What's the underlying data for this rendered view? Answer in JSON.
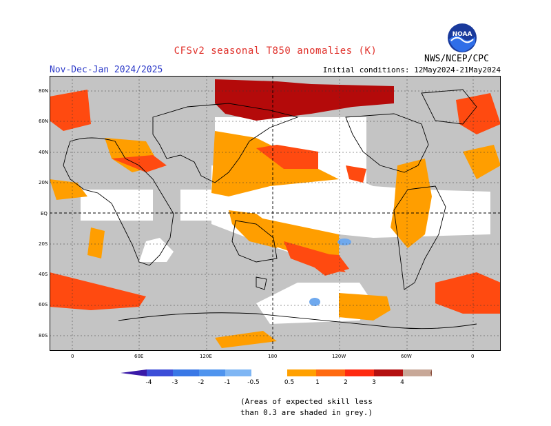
{
  "header": {
    "title": "CFSv2 seasonal T850 anomalies (K)",
    "period": "Nov-Dec-Jan 2024/2025",
    "initial_conditions": "Initial conditions: 12May2024-21May2024",
    "agency": "NWS/NCEP/CPC",
    "logo_text": "NOAA"
  },
  "map": {
    "lat_labels": [
      "80N",
      "60N",
      "40N",
      "20N",
      "EQ",
      "20S",
      "40S",
      "60S",
      "80S"
    ],
    "lon_labels": [
      "0",
      "60E",
      "120E",
      "180",
      "120W",
      "60W",
      "0"
    ],
    "colors": {
      "skill_grey": "#c4c4c4",
      "orange": "#ff9e00",
      "red_orange": "#ff4a10",
      "red": "#e81c0c",
      "dark_red": "#b40a0a",
      "light_blue": "#6fa9ee"
    }
  },
  "colorbar": {
    "labels": [
      "-4",
      "-3",
      "-2",
      "-1",
      "-0.5",
      "0.5",
      "1",
      "2",
      "3",
      "4"
    ],
    "colors": [
      "#3a1aa8",
      "#3c4ed8",
      "#3a78e6",
      "#4f94ee",
      "#7fb6f4",
      "#ffffff",
      "#ffa000",
      "#ff6a10",
      "#ff2a10",
      "#b41010",
      "#c8a898",
      "#8a5040"
    ]
  },
  "note": {
    "line1": "(Areas of expected skill less",
    "line2": "than 0.3 are shaded in grey.)"
  }
}
